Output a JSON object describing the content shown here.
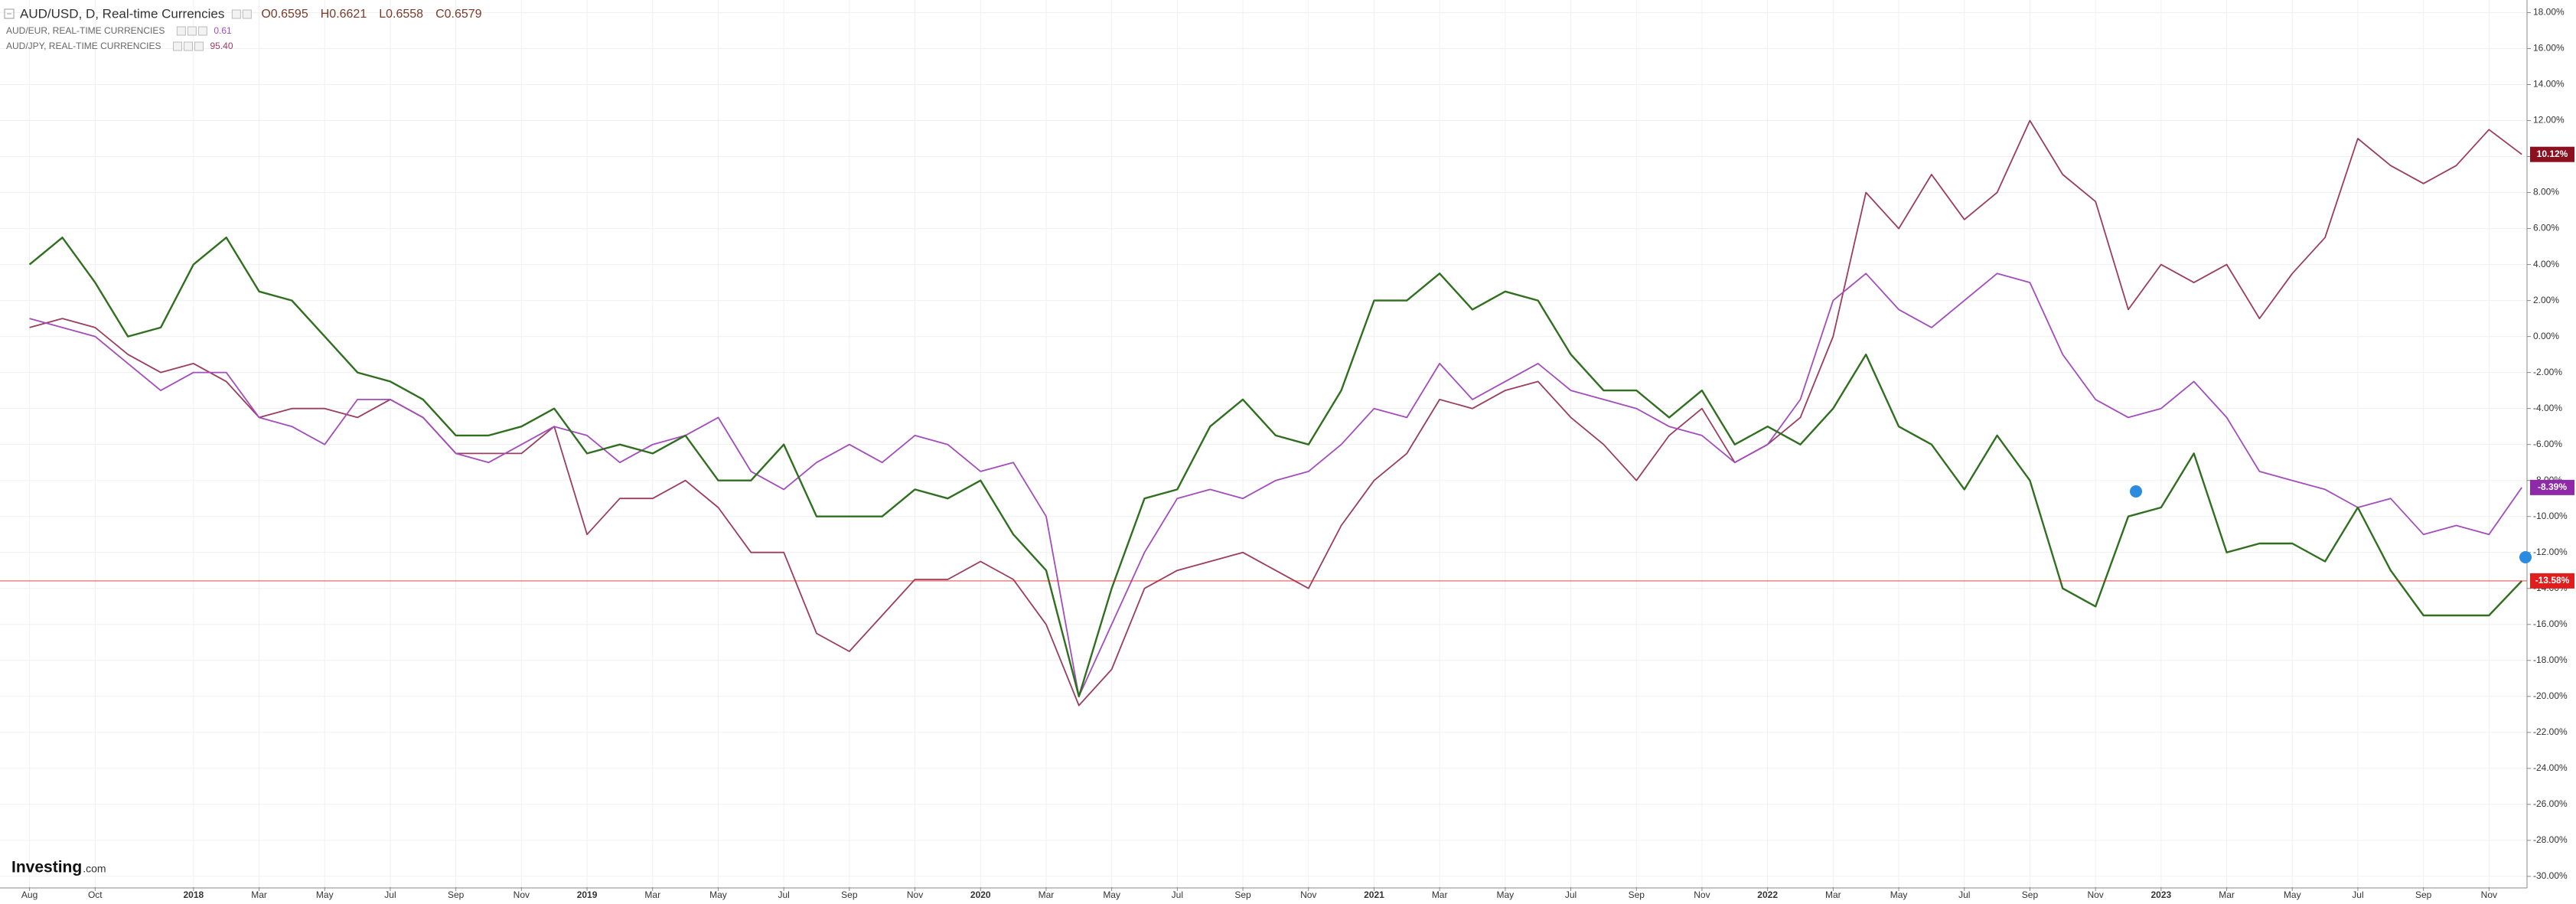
{
  "chart_data": {
    "type": "line",
    "header": {
      "quote": [
        "O0.6595",
        "H0.6621",
        "L0.6558",
        "C0.6579"
      ]
    },
    "logo": {
      "brand": "Investing",
      "suffix": ".com"
    },
    "categories": [
      "Aug",
      null,
      "Oct",
      null,
      null,
      "2018",
      null,
      "Mar",
      null,
      "May",
      null,
      "Jul",
      null,
      "Sep",
      null,
      "Nov",
      null,
      "2019",
      null,
      "Mar",
      null,
      "May",
      null,
      "Jul",
      null,
      "Sep",
      null,
      "Nov",
      null,
      "2020",
      null,
      "Mar",
      null,
      "May",
      null,
      "Jul",
      null,
      "Sep",
      null,
      "Nov",
      null,
      "2021",
      null,
      "Mar",
      null,
      "May",
      null,
      "Jul",
      null,
      "Sep",
      null,
      "Nov",
      null,
      "2022",
      null,
      "Mar",
      null,
      "May",
      null,
      "Jul",
      null,
      "Sep",
      null,
      "Nov",
      null,
      "2023",
      null,
      "Mar",
      null,
      "May",
      null,
      "Jul",
      null,
      "Sep",
      null,
      "Nov",
      null
    ],
    "series": [
      {
        "name": "AUD/USD, D, Real-time Currencies",
        "color": "#2f6f1f",
        "label_color": "#e01e1e",
        "values": [
          4,
          5.5,
          3,
          0,
          0.5,
          4,
          5.5,
          2.5,
          2,
          0,
          -2,
          -2.5,
          -3.5,
          -5.5,
          -5.5,
          -5,
          -4,
          -6.5,
          -6,
          -6.5,
          -5.5,
          -8,
          -8,
          -6,
          -10,
          -10,
          -10,
          -8.5,
          -9,
          -8,
          -11,
          -13,
          -20,
          -14,
          -9,
          -8.5,
          -5,
          -3.5,
          -5.5,
          -6,
          -3,
          2,
          2,
          3.5,
          1.5,
          2.5,
          2,
          -1,
          -3,
          -3,
          -4.5,
          -3,
          -6,
          -5,
          -6,
          -4,
          -1,
          -5,
          -6,
          -8.5,
          -5.5,
          -8,
          -14,
          -15,
          -10,
          -9.5,
          -6.5,
          -12,
          -11.5,
          -11.5,
          -12.5,
          -9.5,
          -13,
          -15.5,
          -15.5,
          -15.5,
          -13.58
        ],
        "value_labels": [
          null,
          null,
          null,
          null,
          null,
          null,
          null,
          null,
          null,
          null,
          null,
          null,
          null,
          null,
          null,
          null,
          null,
          null,
          null,
          null,
          null,
          null,
          null,
          null,
          null,
          null,
          null,
          null,
          null,
          null,
          null,
          null,
          null,
          null,
          null,
          null,
          null,
          null,
          null,
          null,
          null,
          null,
          null,
          null,
          null,
          null,
          null,
          null,
          null,
          null,
          null,
          null,
          null,
          null,
          null,
          null,
          null,
          null,
          null,
          null,
          null,
          null,
          null,
          null,
          null,
          null,
          null,
          null,
          null,
          null,
          null,
          null,
          null,
          null,
          null,
          null,
          "-13.58%"
        ]
      },
      {
        "name": "AUD/EUR, REAL-TIME CURRENCIES",
        "quote": "0.61",
        "color": "#a24dbb",
        "label_color": "#8e2aa8",
        "values": [
          1,
          0.5,
          0,
          -1.5,
          -3,
          -2,
          -2,
          -4.5,
          -5,
          -6,
          -3.5,
          -3.5,
          -4.5,
          -6.5,
          -7,
          -6,
          -5,
          -5.5,
          -7,
          -6,
          -5.5,
          -4.5,
          -7.5,
          -8.5,
          -7,
          -6,
          -7,
          -5.5,
          -6,
          -7.5,
          -7,
          -10,
          -20,
          -16,
          -12,
          -9,
          -8.5,
          -9,
          -8,
          -7.5,
          -6,
          -4,
          -4.5,
          -1.5,
          -3.5,
          -2.5,
          -1.5,
          -3,
          -3.5,
          -4,
          -5,
          -5.5,
          -7,
          -6,
          -3.5,
          2,
          3.5,
          1.5,
          0.5,
          2,
          3.5,
          3,
          -1,
          -3.5,
          -4.5,
          -4,
          -2.5,
          -4.5,
          -7.5,
          -8,
          -8.5,
          -9.5,
          -9,
          -11,
          -10.5,
          -11,
          -8.39
        ],
        "value_labels": [
          null,
          null,
          null,
          null,
          null,
          null,
          null,
          null,
          null,
          null,
          null,
          null,
          null,
          null,
          null,
          null,
          null,
          null,
          null,
          null,
          null,
          null,
          null,
          null,
          null,
          null,
          null,
          null,
          null,
          null,
          null,
          null,
          null,
          null,
          null,
          null,
          null,
          null,
          null,
          null,
          null,
          null,
          null,
          null,
          null,
          null,
          null,
          null,
          null,
          null,
          null,
          null,
          null,
          null,
          null,
          null,
          null,
          null,
          null,
          null,
          null,
          null,
          null,
          null,
          null,
          null,
          null,
          null,
          null,
          null,
          null,
          null,
          null,
          null,
          null,
          null,
          "-8.39%"
        ]
      },
      {
        "name": "AUD/JPY, REAL-TIME CURRENCIES",
        "quote": "95.40",
        "color": "#9a3d5e",
        "label_color": "#8b1020",
        "values": [
          0.5,
          1,
          0.5,
          -1,
          -2,
          -1.5,
          -2.5,
          -4.5,
          -4,
          -4,
          -4.5,
          -3.5,
          -4.5,
          -6.5,
          -6.5,
          -6.5,
          -5,
          -11,
          -9,
          -9,
          -8,
          -9.5,
          -12,
          -12,
          -16.5,
          -17.5,
          -15.5,
          -13.5,
          -13.5,
          -12.5,
          -13.5,
          -16,
          -20.5,
          -18.5,
          -14,
          -13,
          -12.5,
          -12,
          -13,
          -14,
          -10.5,
          -8,
          -6.5,
          -3.5,
          -4,
          -3,
          -2.5,
          -4.5,
          -6,
          -8,
          -5.5,
          -4,
          -7,
          -6,
          -4.5,
          0,
          8,
          6,
          9,
          6.5,
          8,
          12,
          9,
          7.5,
          1.5,
          4,
          3,
          4,
          1,
          3.5,
          5.5,
          11,
          9.5,
          8.5,
          9.5,
          11.5,
          10.12
        ],
        "value_labels": [
          null,
          null,
          null,
          null,
          null,
          null,
          null,
          null,
          null,
          null,
          null,
          null,
          null,
          null,
          null,
          null,
          null,
          null,
          null,
          null,
          null,
          null,
          null,
          null,
          null,
          null,
          null,
          null,
          null,
          null,
          null,
          null,
          null,
          null,
          null,
          null,
          null,
          null,
          null,
          null,
          null,
          null,
          null,
          null,
          null,
          null,
          null,
          null,
          null,
          null,
          null,
          null,
          null,
          null,
          null,
          null,
          null,
          null,
          null,
          null,
          null,
          null,
          null,
          null,
          null,
          null,
          null,
          null,
          null,
          null,
          null,
          null,
          null,
          null,
          null,
          null,
          "10.12%"
        ]
      }
    ],
    "ylim": [
      -30.6,
      18.7
    ],
    "yticks": [
      {
        "value": 18,
        "label": "18.00%"
      },
      {
        "value": 16,
        "label": "16.00%"
      },
      {
        "value": 14,
        "label": "14.00%"
      },
      {
        "value": 12,
        "label": "12.00%"
      },
      {
        "value": 10,
        "label": "10.00%"
      },
      {
        "value": 8,
        "label": "8.00%"
      },
      {
        "value": 6,
        "label": "6.00%"
      },
      {
        "value": 4,
        "label": "4.00%"
      },
      {
        "value": 2,
        "label": "2.00%"
      },
      {
        "value": 0,
        "label": "0.00%"
      },
      {
        "value": -2,
        "label": "-2.00%"
      },
      {
        "value": -4,
        "label": "-4.00%"
      },
      {
        "value": -6,
        "label": "-6.00%"
      },
      {
        "value": -8,
        "label": "-8.00%"
      },
      {
        "value": -10,
        "label": "-10.00%"
      },
      {
        "value": -12,
        "label": "-12.00%"
      },
      {
        "value": -14,
        "label": "-14.00%"
      },
      {
        "value": -16,
        "label": "-16.00%"
      },
      {
        "value": -18,
        "label": "-18.00%"
      },
      {
        "value": -20,
        "label": "-20.00%"
      },
      {
        "value": -22,
        "label": "-22.00%"
      },
      {
        "value": -24,
        "label": "-24.00%"
      },
      {
        "value": -26,
        "label": "-26.00%"
      },
      {
        "value": -28,
        "label": "-28.00%"
      },
      {
        "value": -30,
        "label": "-30.00%"
      }
    ],
    "grid": true
  }
}
